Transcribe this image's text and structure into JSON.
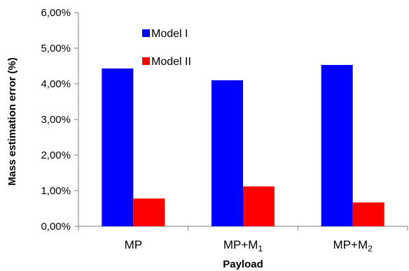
{
  "chart_data": {
    "type": "bar",
    "title": "",
    "xlabel": "Payload",
    "ylabel": "Mass estimation error (%)",
    "categories": [
      {
        "base": "MP",
        "sub": ""
      },
      {
        "base": "MP+M",
        "sub": "1"
      },
      {
        "base": "MP+M",
        "sub": "2"
      }
    ],
    "series": [
      {
        "name": "Model I",
        "color": "#0000ff",
        "values": [
          4.43,
          4.1,
          4.53
        ]
      },
      {
        "name": "Model II",
        "color": "#ff0000",
        "values": [
          0.78,
          1.12,
          0.67
        ]
      }
    ],
    "ylim": [
      0,
      6
    ],
    "yticks": [
      0,
      1,
      2,
      3,
      4,
      5,
      6
    ],
    "ytick_labels": [
      "0,00%",
      "1,00%",
      "2,00%",
      "3,00%",
      "4,00%",
      "5,00%",
      "6,00%"
    ],
    "grid": false,
    "legend_position": "top-left"
  }
}
